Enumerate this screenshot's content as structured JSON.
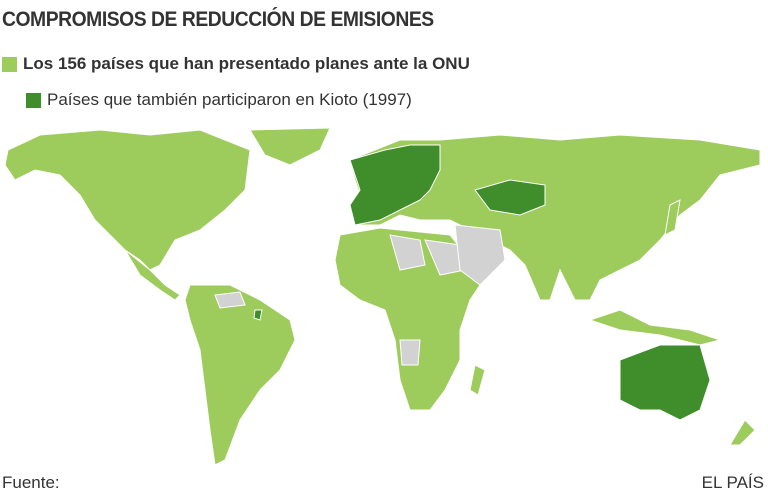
{
  "header": {
    "title": "COMPROMISOS DE REDUCCIÓN DE EMISIONES"
  },
  "legend": [
    {
      "label": "Los 156 países que han presentado planes ante la ONU"
    },
    {
      "label": "Países que también participaron en Kioto (1997)"
    }
  ],
  "footer": {
    "source": "Fuente:",
    "credit": "EL PAÍS"
  }
}
